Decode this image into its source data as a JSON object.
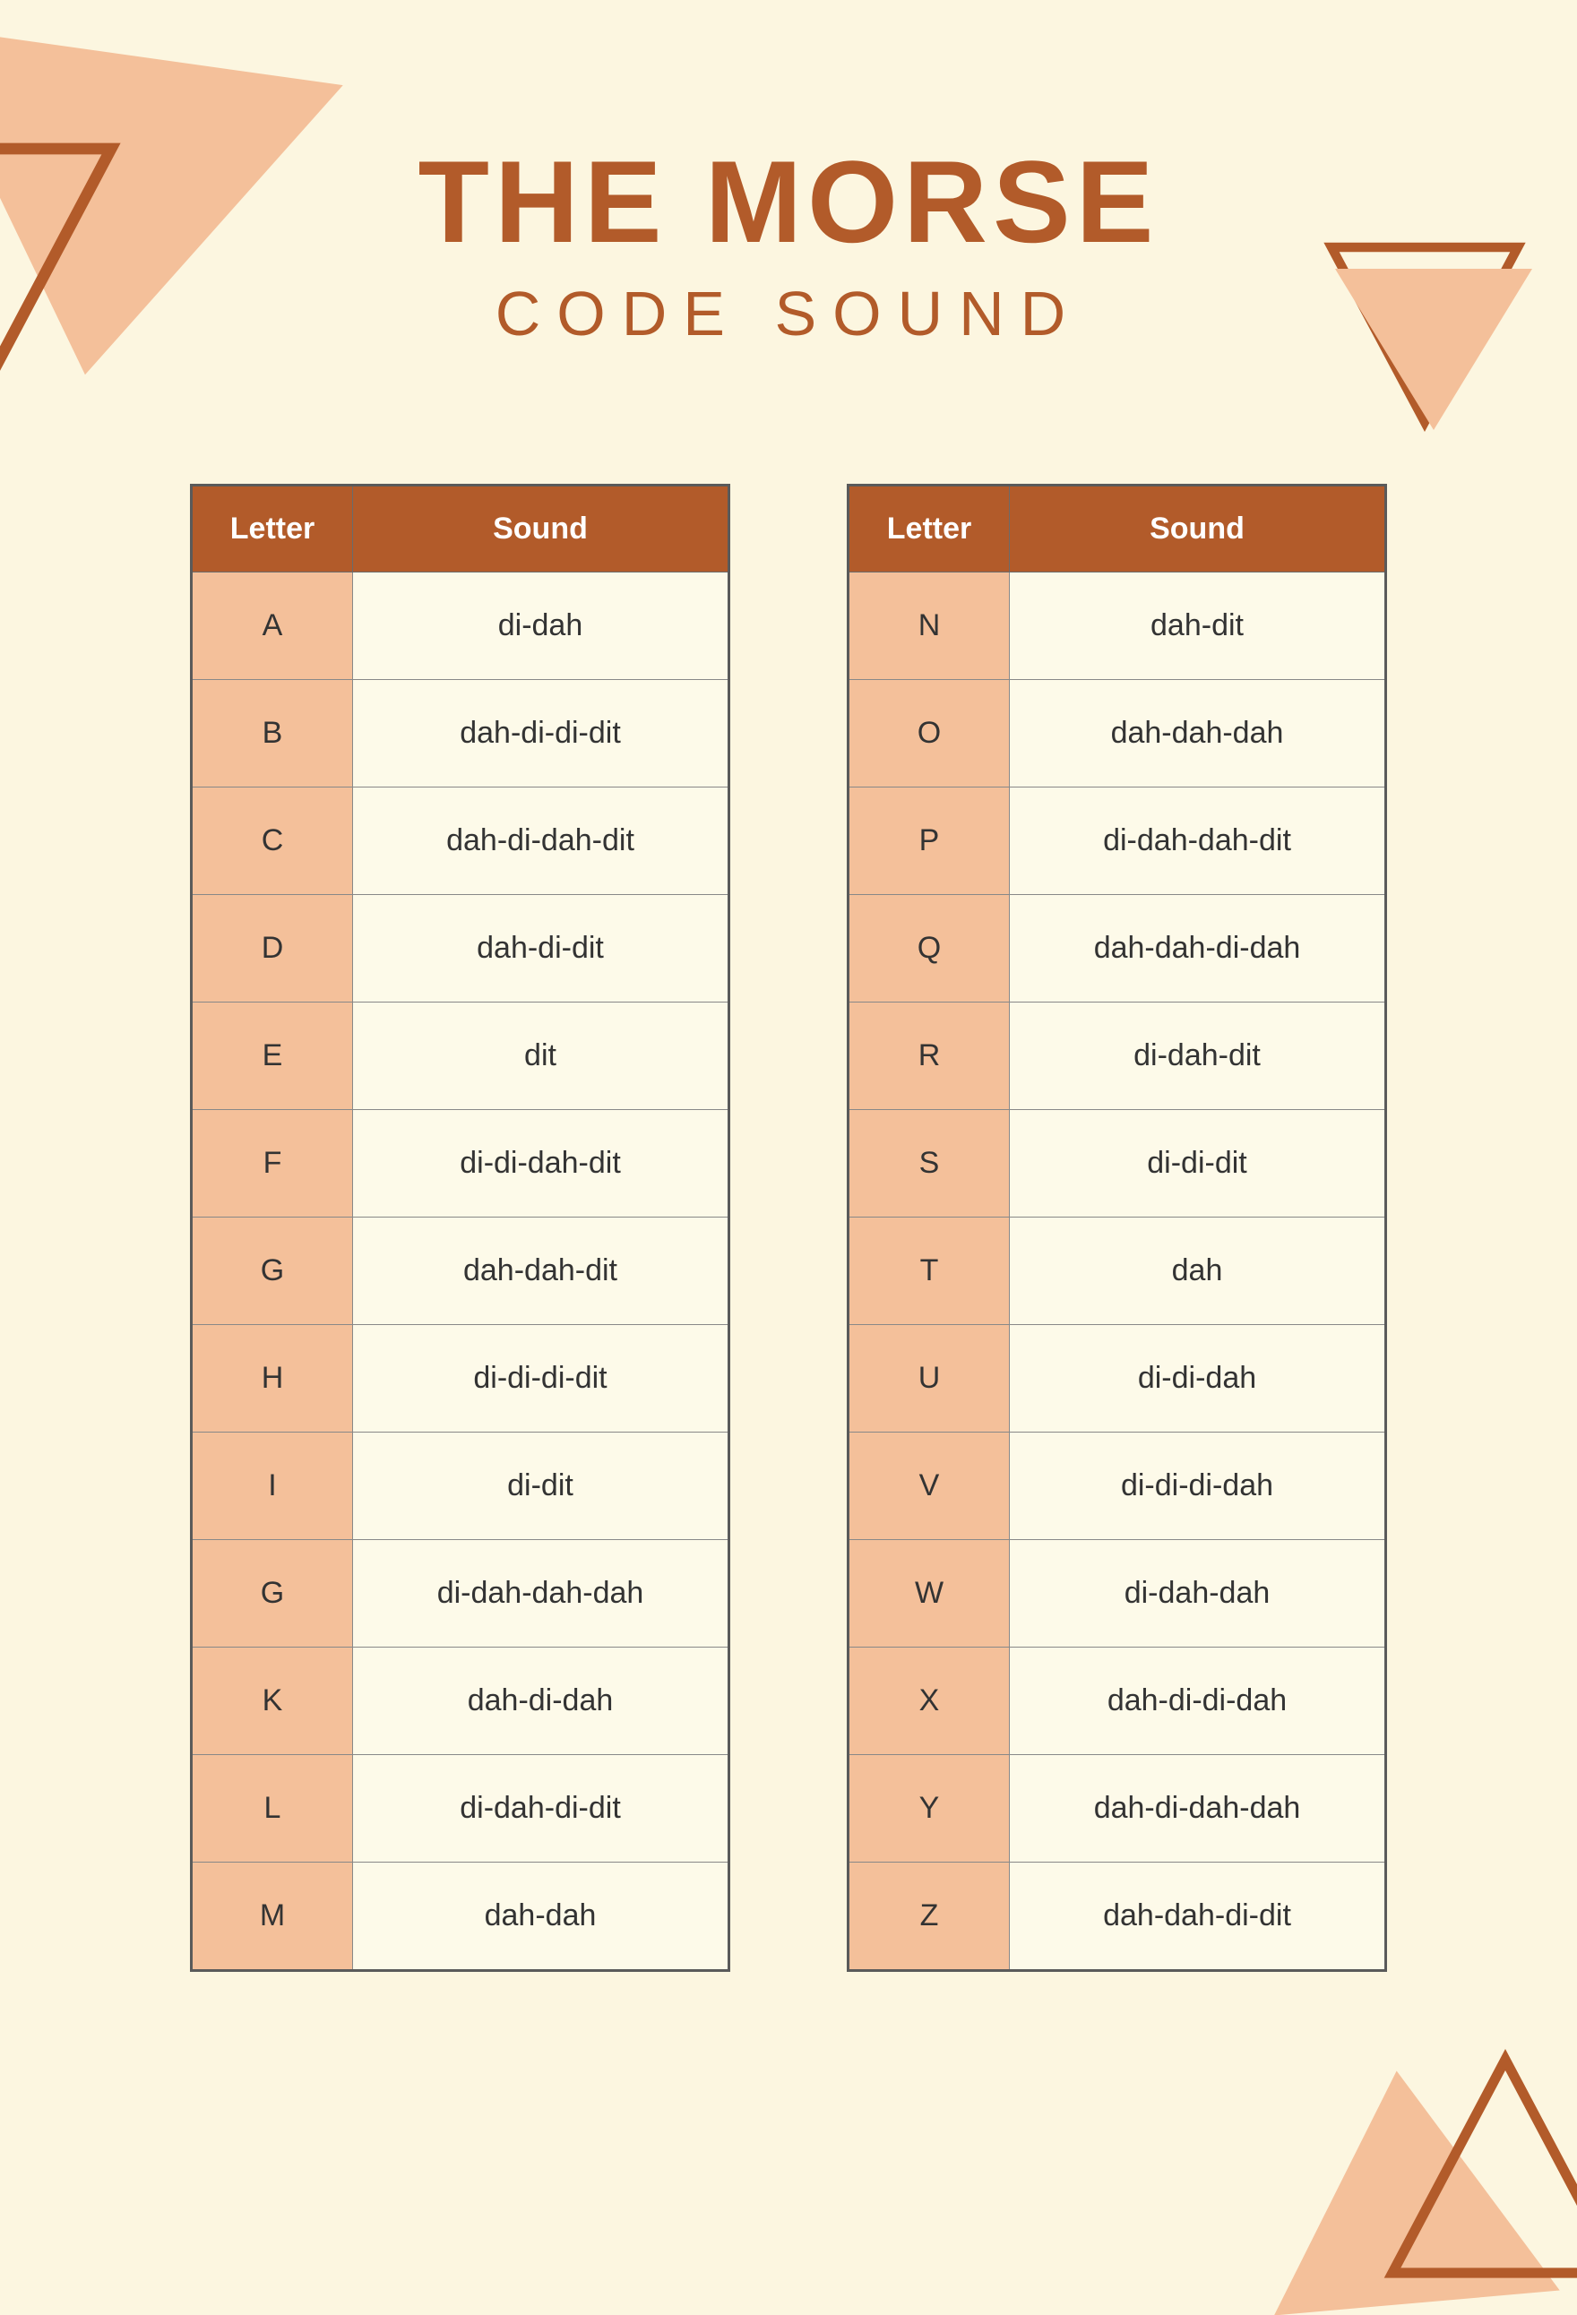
{
  "title_main": "THE MORSE",
  "title_sub": "CODE SOUND",
  "colors": {
    "background": "#fcf6e0",
    "primary": "#b25b2a",
    "cell_letter_bg": "#f4c09a",
    "cell_sound_bg": "#fdfae9",
    "border": "#6b6b6b",
    "text": "#333333",
    "header_text": "#ffffff"
  },
  "columns": {
    "letter": "Letter",
    "sound": "Sound"
  },
  "table_left": [
    {
      "letter": "A",
      "sound": "di-dah"
    },
    {
      "letter": "B",
      "sound": "dah-di-di-dit"
    },
    {
      "letter": "C",
      "sound": "dah-di-dah-dit"
    },
    {
      "letter": "D",
      "sound": "dah-di-dit"
    },
    {
      "letter": "E",
      "sound": "dit"
    },
    {
      "letter": "F",
      "sound": "di-di-dah-dit"
    },
    {
      "letter": "G",
      "sound": "dah-dah-dit"
    },
    {
      "letter": "H",
      "sound": "di-di-di-dit"
    },
    {
      "letter": "I",
      "sound": "di-dit"
    },
    {
      "letter": "G",
      "sound": "di-dah-dah-dah"
    },
    {
      "letter": "K",
      "sound": "dah-di-dah"
    },
    {
      "letter": "L",
      "sound": "di-dah-di-dit"
    },
    {
      "letter": "M",
      "sound": "dah-dah"
    }
  ],
  "table_right": [
    {
      "letter": "N",
      "sound": "dah-dit"
    },
    {
      "letter": "O",
      "sound": "dah-dah-dah"
    },
    {
      "letter": "P",
      "sound": "di-dah-dah-dit"
    },
    {
      "letter": "Q",
      "sound": "dah-dah-di-dah"
    },
    {
      "letter": "R",
      "sound": "di-dah-dit"
    },
    {
      "letter": "S",
      "sound": "di-di-dit"
    },
    {
      "letter": "T",
      "sound": "dah"
    },
    {
      "letter": "U",
      "sound": "di-di-dah"
    },
    {
      "letter": "V",
      "sound": "di-di-di-dah"
    },
    {
      "letter": "W",
      "sound": "di-dah-dah"
    },
    {
      "letter": "X",
      "sound": "dah-di-di-dah"
    },
    {
      "letter": "Y",
      "sound": "dah-di-dah-dah"
    },
    {
      "letter": "Z",
      "sound": "dah-dah-di-dit"
    }
  ]
}
